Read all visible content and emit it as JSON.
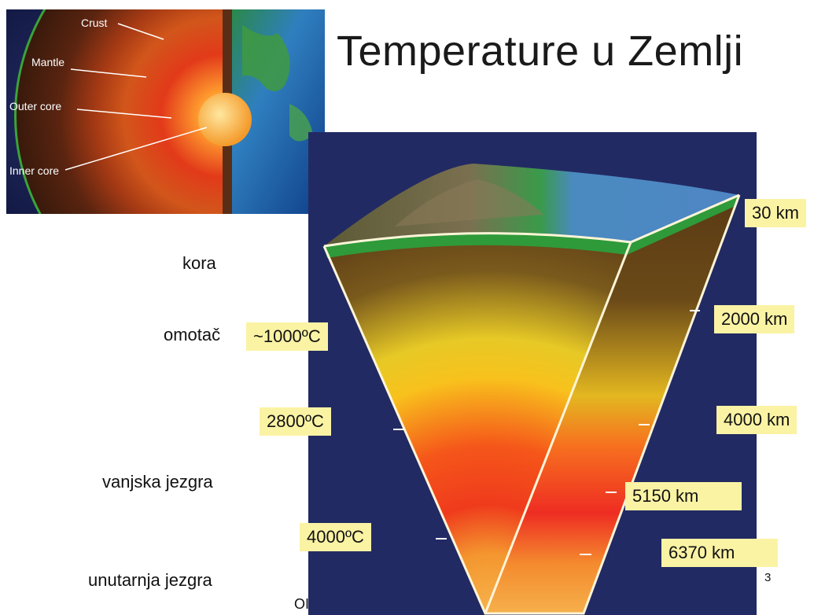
{
  "slide": {
    "title": "Temperature u Zemlji",
    "page_number": "3",
    "clipped_text": "OI"
  },
  "globe_inset": {
    "labels": [
      "Crust",
      "Mantle",
      "Outer core",
      "Inner core"
    ]
  },
  "layers": [
    "kora",
    "omotač",
    "vanjska jezgra",
    "unutarnja jezgra"
  ],
  "temperatures": [
    "~1000ºC",
    "2800ºC",
    "4000ºC"
  ],
  "depths": [
    "30 km",
    "2000 km",
    "4000 km",
    "5150 km",
    "6370 km"
  ],
  "colors": {
    "tag_bg": "#fbf3a4",
    "diagram_bg": "#222a63",
    "crust_green": "#3a9a3a",
    "core_orange": "#f29a3a"
  }
}
